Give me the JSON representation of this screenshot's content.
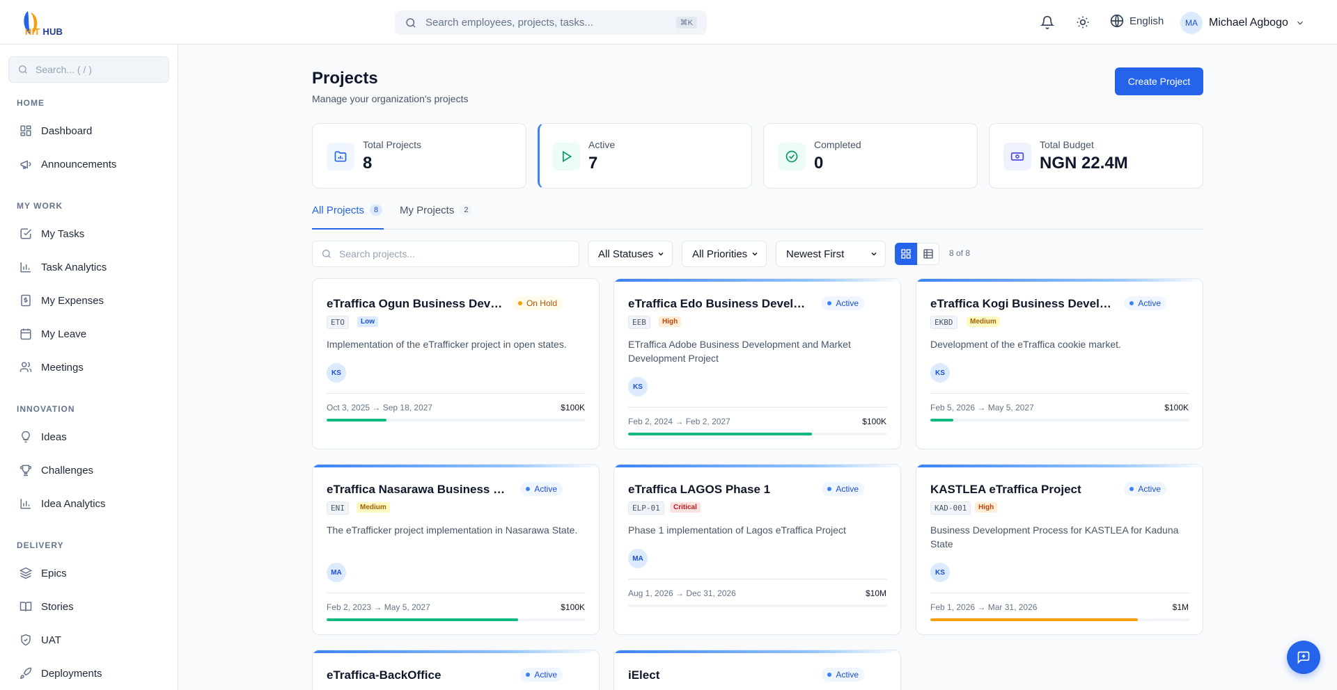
{
  "app": {
    "logo_text_a": "HIT",
    "logo_text_b": " HUB",
    "global_search_placeholder": "Search employees, projects, tasks...",
    "global_search_kbd": "⌘K",
    "language": "English",
    "user_initials": "MA",
    "user_name": "Michael Agbogo"
  },
  "sidebar": {
    "search_placeholder": "Search...  ( / )",
    "sections": [
      {
        "title": "HOME",
        "items": [
          {
            "label": "Dashboard",
            "icon": "dashboard-icon"
          },
          {
            "label": "Announcements",
            "icon": "megaphone-icon"
          }
        ]
      },
      {
        "title": "MY WORK",
        "items": [
          {
            "label": "My Tasks",
            "icon": "task-check-icon"
          },
          {
            "label": "Task Analytics",
            "icon": "bar-chart-icon"
          },
          {
            "label": "My Expenses",
            "icon": "receipt-icon"
          },
          {
            "label": "My Leave",
            "icon": "calendar-icon"
          },
          {
            "label": "Meetings",
            "icon": "users-icon"
          }
        ]
      },
      {
        "title": "INNOVATION",
        "items": [
          {
            "label": "Ideas",
            "icon": "lightbulb-icon"
          },
          {
            "label": "Challenges",
            "icon": "trophy-icon"
          },
          {
            "label": "Idea Analytics",
            "icon": "bar-chart-icon"
          }
        ]
      },
      {
        "title": "DELIVERY",
        "items": [
          {
            "label": "Epics",
            "icon": "layers-icon"
          },
          {
            "label": "Stories",
            "icon": "book-icon"
          },
          {
            "label": "UAT",
            "icon": "shield-check-icon"
          },
          {
            "label": "Deployments",
            "icon": "rocket-icon"
          }
        ]
      }
    ]
  },
  "main": {
    "title": "Projects",
    "subtitle": "Manage your organization's projects",
    "create_label": "Create Project",
    "stats": [
      {
        "label": "Total Projects",
        "value": "8",
        "icon": "folder-chart-icon"
      },
      {
        "label": "Active",
        "value": "7",
        "icon": "play-icon"
      },
      {
        "label": "Completed",
        "value": "0",
        "icon": "check-circle-icon"
      },
      {
        "label": "Total Budget",
        "value": "NGN 22.4M",
        "icon": "banknote-icon"
      }
    ],
    "tabs": [
      {
        "label": "All Projects",
        "count": "8",
        "selected": true
      },
      {
        "label": "My Projects",
        "count": "2",
        "selected": false
      }
    ],
    "filters": {
      "search_placeholder": "Search projects...",
      "status": "All Statuses",
      "priority": "All Priorities",
      "sort": "Newest First",
      "result_count": "8 of 8"
    },
    "projects": [
      {
        "title": "eTraffica Ogun Business Develo...",
        "status": "On Hold",
        "status_kind": "hold",
        "code": "ETO",
        "priority": "Low",
        "priority_kind": "low",
        "description": "Implementation of the eTrafficker project in open states.",
        "owner": "KS",
        "dates": "Oct 3, 2025 → Sep 18, 2027",
        "budget": "$100K",
        "progress": 0.23,
        "bar_color": "#10b981"
      },
      {
        "title": "eTraffica Edo Business Develope...",
        "status": "Active",
        "status_kind": "active",
        "code": "EEB",
        "priority": "High",
        "priority_kind": "high",
        "description": "ETraffica Adobe Business Development and Market Development Project",
        "owner": "KS",
        "dates": "Feb 2, 2024 → Feb 2, 2027",
        "budget": "$100K",
        "progress": 0.71,
        "bar_color": "#10b981"
      },
      {
        "title": "eTraffica Kogi Business Develop...",
        "status": "Active",
        "status_kind": "active",
        "code": "EKBD",
        "priority": "Medium",
        "priority_kind": "medium",
        "description": "Development of the eTraffica cookie market.",
        "owner": "KS",
        "dates": "Feb 5, 2026 → May 5, 2027",
        "budget": "$100K",
        "progress": 0.09,
        "bar_color": "#10b981"
      },
      {
        "title": "eTraffica Nasarawa Business Dev...",
        "status": "Active",
        "status_kind": "active",
        "code": "ENI",
        "priority": "Medium",
        "priority_kind": "medium",
        "description": "The eTrafficker project implementation in Nasarawa State.",
        "owner": "MA",
        "dates": "Feb 2, 2023 → May 5, 2027",
        "budget": "$100K",
        "progress": 0.74,
        "bar_color": "#10b981"
      },
      {
        "title": "eTraffica LAGOS Phase 1",
        "status": "Active",
        "status_kind": "active",
        "code": "ELP-01",
        "priority": "Critical",
        "priority_kind": "critical",
        "description": "Phase 1 implementation of Lagos eTraffica Project",
        "owner": "MA",
        "dates": "Aug 1, 2026 → Dec 31, 2026",
        "budget": "$10M",
        "progress": 0,
        "bar_color": "#10b981"
      },
      {
        "title": "KASTLEA eTraffica Project",
        "status": "Active",
        "status_kind": "active",
        "code": "KAD-001",
        "priority": "High",
        "priority_kind": "high",
        "description": "Business Development Process for KASTLEA for Kaduna State",
        "owner": "KS",
        "dates": "Feb 1, 2026 → Mar 31, 2026",
        "budget": "$1M",
        "progress": 0.8,
        "bar_color": "#f59e0b"
      },
      {
        "title": "eTraffica-BackOffice",
        "status": "Active",
        "status_kind": "active"
      },
      {
        "title": "iElect",
        "status": "Active",
        "status_kind": "active"
      }
    ]
  }
}
